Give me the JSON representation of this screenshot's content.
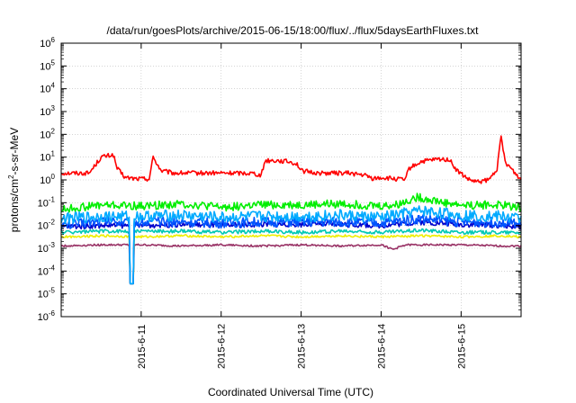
{
  "chart_data": {
    "type": "line",
    "title": "/data/run/goesPlots/archive/2015-06-15/18:00/flux/../flux/5daysEarthFluxes.txt",
    "xlabel": "Coordinated Universal Time (UTC)",
    "ylabel_parts": {
      "pre": "protons/cm",
      "sup": "2",
      "post": "-s-sr-MeV"
    },
    "y_scale": "log",
    "ylim_exp": [
      -6,
      6
    ],
    "y_ticks": [
      {
        "base": "10",
        "exp": "-6",
        "e": -6
      },
      {
        "base": "10",
        "exp": "-5",
        "e": -5
      },
      {
        "base": "10",
        "exp": "-4",
        "e": -4
      },
      {
        "base": "10",
        "exp": "-3",
        "e": -3
      },
      {
        "base": "10",
        "exp": "-2",
        "e": -2
      },
      {
        "base": "10",
        "exp": "-1",
        "e": -1
      },
      {
        "base": "10",
        "exp": "0",
        "e": 0
      },
      {
        "base": "10",
        "exp": "1",
        "e": 1
      },
      {
        "base": "10",
        "exp": "2",
        "e": 2
      },
      {
        "base": "10",
        "exp": "3",
        "e": 3
      },
      {
        "base": "10",
        "exp": "4",
        "e": 4
      },
      {
        "base": "10",
        "exp": "5",
        "e": 5
      },
      {
        "base": "10",
        "exp": "6",
        "e": 6
      }
    ],
    "xlim_days": [
      10.0,
      15.75
    ],
    "x_ticks": [
      {
        "label": "2015-6-11",
        "day": 11
      },
      {
        "label": "2015-6-12",
        "day": 12
      },
      {
        "label": "2015-6-13",
        "day": 13
      },
      {
        "label": "2015-6-14",
        "day": 14
      },
      {
        "label": "2015-6-15",
        "day": 15
      }
    ],
    "grid": true,
    "legend": "none",
    "series": [
      {
        "color": "#ff0000",
        "anchors": [
          [
            10.0,
            0.3
          ],
          [
            10.35,
            0.3
          ],
          [
            10.5,
            1.0
          ],
          [
            10.65,
            1.1
          ],
          [
            10.7,
            0.5
          ],
          [
            10.8,
            0.1
          ],
          [
            10.95,
            0.05
          ],
          [
            11.1,
            0.05
          ],
          [
            11.15,
            1.0
          ],
          [
            11.25,
            0.4
          ],
          [
            11.4,
            0.3
          ],
          [
            11.6,
            0.3
          ],
          [
            11.8,
            0.3
          ],
          [
            12.0,
            0.3
          ],
          [
            12.2,
            0.3
          ],
          [
            12.4,
            0.3
          ],
          [
            12.5,
            0.2
          ],
          [
            12.55,
            0.85
          ],
          [
            12.7,
            0.85
          ],
          [
            12.85,
            0.8
          ],
          [
            12.95,
            0.7
          ],
          [
            13.0,
            0.4
          ],
          [
            13.2,
            0.3
          ],
          [
            13.4,
            0.3
          ],
          [
            13.6,
            0.3
          ],
          [
            13.8,
            0.2
          ],
          [
            13.9,
            0.05
          ],
          [
            14.0,
            0.1
          ],
          [
            14.15,
            0.05
          ],
          [
            14.3,
            0.0
          ],
          [
            14.35,
            0.5
          ],
          [
            14.5,
            0.8
          ],
          [
            14.7,
            0.9
          ],
          [
            14.85,
            0.9
          ],
          [
            14.95,
            0.4
          ],
          [
            15.1,
            0.0
          ],
          [
            15.2,
            -0.1
          ],
          [
            15.35,
            0.0
          ],
          [
            15.45,
            0.5
          ],
          [
            15.5,
            1.9
          ],
          [
            15.55,
            0.8
          ],
          [
            15.65,
            0.4
          ],
          [
            15.75,
            0.0
          ]
        ],
        "noise": 0.1
      },
      {
        "color": "#00ee00",
        "anchors": [
          [
            10.0,
            -1.3
          ],
          [
            10.5,
            -1.1
          ],
          [
            11.0,
            -1.15
          ],
          [
            11.5,
            -1.05
          ],
          [
            12.0,
            -1.2
          ],
          [
            12.5,
            -1.1
          ],
          [
            13.0,
            -1.1
          ],
          [
            13.5,
            -1.05
          ],
          [
            14.0,
            -1.15
          ],
          [
            14.2,
            -1.1
          ],
          [
            14.45,
            -0.75
          ],
          [
            14.6,
            -0.85
          ],
          [
            14.8,
            -1.0
          ],
          [
            15.0,
            -1.1
          ],
          [
            15.5,
            -1.1
          ],
          [
            15.75,
            -1.2
          ]
        ],
        "noise": 0.18
      },
      {
        "color": "#00aaff",
        "anchors": [
          [
            10.0,
            -1.7
          ],
          [
            10.5,
            -1.6
          ],
          [
            11.0,
            -1.6
          ],
          [
            11.5,
            -1.55
          ],
          [
            12.0,
            -1.65
          ],
          [
            12.5,
            -1.6
          ],
          [
            13.0,
            -1.6
          ],
          [
            13.5,
            -1.55
          ],
          [
            14.0,
            -1.65
          ],
          [
            14.5,
            -1.35
          ],
          [
            15.0,
            -1.55
          ],
          [
            15.5,
            -1.6
          ],
          [
            15.75,
            -1.7
          ]
        ],
        "noise": 0.25
      },
      {
        "color": "#0055ff",
        "anchors": [
          [
            10.0,
            -2.0
          ],
          [
            10.5,
            -1.8
          ],
          [
            11.0,
            -1.85
          ],
          [
            11.5,
            -1.85
          ],
          [
            12.0,
            -1.9
          ],
          [
            12.5,
            -1.85
          ],
          [
            13.0,
            -1.85
          ],
          [
            13.5,
            -1.85
          ],
          [
            14.0,
            -1.9
          ],
          [
            14.5,
            -1.7
          ],
          [
            15.0,
            -1.85
          ],
          [
            15.5,
            -1.85
          ],
          [
            15.75,
            -1.95
          ]
        ],
        "noise": 0.22
      },
      {
        "color": "#0000cc",
        "anchors": [
          [
            10.0,
            -2.05
          ],
          [
            10.5,
            -2.0
          ],
          [
            11.0,
            -2.0
          ],
          [
            11.5,
            -1.95
          ],
          [
            12.0,
            -2.0
          ],
          [
            12.5,
            -1.95
          ],
          [
            13.0,
            -1.95
          ],
          [
            13.5,
            -1.95
          ],
          [
            14.0,
            -2.0
          ],
          [
            14.5,
            -1.85
          ],
          [
            15.0,
            -1.95
          ],
          [
            15.5,
            -2.0
          ],
          [
            15.75,
            -2.05
          ]
        ],
        "noise": 0.12
      },
      {
        "color": "#00c8b4",
        "anchors": [
          [
            10.0,
            -2.3
          ],
          [
            10.5,
            -2.25
          ],
          [
            11.0,
            -2.25
          ],
          [
            11.5,
            -2.25
          ],
          [
            12.0,
            -2.3
          ],
          [
            12.5,
            -2.25
          ],
          [
            13.0,
            -2.3
          ],
          [
            13.5,
            -2.25
          ],
          [
            14.0,
            -2.3
          ],
          [
            14.5,
            -2.2
          ],
          [
            15.0,
            -2.3
          ],
          [
            15.5,
            -2.3
          ],
          [
            15.75,
            -2.3
          ]
        ],
        "noise": 0.08
      },
      {
        "color": "#eeee00",
        "anchors": [
          [
            10.0,
            -2.5
          ],
          [
            10.5,
            -2.45
          ],
          [
            11.0,
            -2.5
          ],
          [
            11.5,
            -2.45
          ],
          [
            12.0,
            -2.5
          ],
          [
            12.5,
            -2.45
          ],
          [
            13.0,
            -2.5
          ],
          [
            13.5,
            -2.45
          ],
          [
            14.0,
            -2.5
          ],
          [
            14.5,
            -2.45
          ],
          [
            15.0,
            -2.5
          ],
          [
            15.5,
            -2.45
          ],
          [
            15.75,
            -2.5
          ]
        ],
        "noise": 0.05
      },
      {
        "color": "#993366",
        "anchors": [
          [
            10.0,
            -2.9
          ],
          [
            10.5,
            -2.85
          ],
          [
            11.0,
            -2.85
          ],
          [
            11.5,
            -2.9
          ],
          [
            12.0,
            -2.85
          ],
          [
            12.5,
            -2.9
          ],
          [
            13.0,
            -2.85
          ],
          [
            13.5,
            -2.9
          ],
          [
            14.0,
            -2.85
          ],
          [
            14.15,
            -3.05
          ],
          [
            14.3,
            -2.85
          ],
          [
            15.0,
            -2.85
          ],
          [
            15.5,
            -2.9
          ],
          [
            15.75,
            -2.9
          ]
        ],
        "noise": 0.04
      }
    ],
    "dip": {
      "day": 10.88,
      "value": -4.55
    }
  }
}
